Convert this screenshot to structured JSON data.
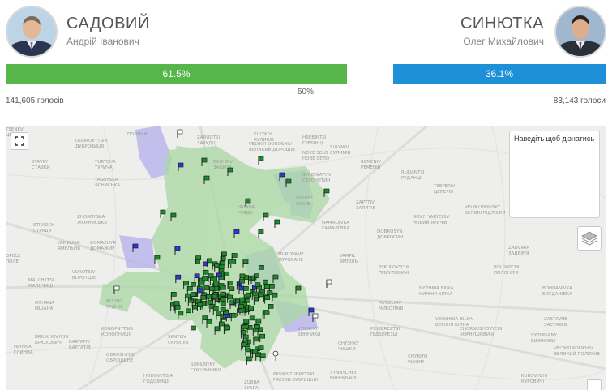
{
  "candidates": {
    "left": {
      "surname": "САДОВИЙ",
      "given": "Андрій Іванович",
      "percent": "61.5%",
      "share": 0.615,
      "votes": "141,605 голосів",
      "color": "#56b649"
    },
    "right": {
      "surname": "СИНЮТКА",
      "given": "Олег Михайлович",
      "percent": "36.1%",
      "share": 0.361,
      "votes": "83,143 голоси",
      "color": "#1e90d8"
    }
  },
  "midpoint_label": "50%",
  "map": {
    "info_text": "Наведіть щоб дізнатись",
    "places": [
      {
        "lines": [
          "ПОЛЯНИ"
        ]
      },
      {
        "lines": [
          "ZARUDTSI",
          "ЗАРУДЦІ"
        ]
      },
      {
        "lines": [
          "KULYKIV",
          "КУЛИКІВ"
        ]
      },
      {
        "lines": [
          "HREBINTSI",
          "ГРЕБІНЦІ"
        ]
      },
      {
        "lines": [
          "DUBROVYTSIA",
          "ДУБРОВИЦЯ"
        ]
      },
      {
        "lines": [
          "NOVE SELO",
          "НОВЕ СЕЛО"
        ]
      },
      {
        "lines": [
          "SULYMIV",
          "СУЛИМІВ"
        ]
      },
      {
        "lines": [
          "STAVKY",
          "СТАВКИ"
        ]
      },
      {
        "lines": [
          "TURYCHA",
          "ТУРИЧА"
        ]
      },
      {
        "lines": [
          "ZASHKIV",
          "ЗАШКІВ"
        ]
      },
      {
        "lines": [
          "VELYKYI DOROSHIV",
          "ВЕЛИКИЙ ДОРОШІВ"
        ]
      },
      {
        "lines": [
          "REMENIV",
          "РЕМЕНІВ"
        ]
      },
      {
        "lines": [
          "RUDANTSI",
          "РУДАНЦІ"
        ]
      },
      {
        "lines": [
          "STRONIATYN",
          "СТРОНЯТИН"
        ]
      },
      {
        "lines": [
          "YASNYSKA",
          "ЯСНИСЬКА"
        ]
      },
      {
        "lines": [
          "HRIADA",
          "ГРЯДА"
        ]
      },
      {
        "lines": [
          "TSEPERIV",
          "ЦЕПЕРІВ"
        ]
      },
      {
        "lines": [
          "SYKHIV",
          "СИХІВ"
        ]
      },
      {
        "lines": [
          "ZAPYTIV",
          "ЗАПИТІВ"
        ]
      },
      {
        "lines": [
          "VELYKI PIDLISKY",
          "ВЕЛИКІ ПІДЛІСКИ"
        ]
      },
      {
        "lines": [
          "ZHORNYSKA",
          "ЖОРНИСЬКА"
        ]
      },
      {
        "lines": [
          "NOVYI YARYCHIV",
          "НОВИЙ ЯРИЧІВ"
        ]
      },
      {
        "lines": [
          "STRADCH",
          "СТРАДЧ"
        ]
      },
      {
        "lines": [
          "HAMALIIVKA",
          "ГАМАЛІЇВКА"
        ]
      },
      {
        "lines": [
          "YAMELNIA",
          "ЯМЕЛЬНЯ"
        ]
      },
      {
        "lines": [
          "DOMAZHYR",
          "ДОМАЖИР"
        ]
      },
      {
        "lines": [
          "ZADVIRIA",
          "ЗАДВІР'Я"
        ]
      },
      {
        "lines": [
          "DOBROSYN",
          "ДОБРОСИН"
        ]
      },
      {
        "lines": [
          "MUROVANE",
          "МУРОВАНЕ"
        ]
      },
      {
        "lines": [
          "YAMPIL",
          "ЯМПІЛЬ"
        ]
      },
      {
        "lines": [
          "VOROTSIV",
          "ВОРОТЦІВ"
        ]
      },
      {
        "lines": [
          "OPOLE",
          "ПОЛЕ"
        ]
      },
      {
        "lines": [
          "PYKULOVYCHI",
          "ПИКУЛОВИЧІ"
        ]
      },
      {
        "lines": [
          "POLONYCHI",
          "ПОЛОНИЧІ"
        ]
      },
      {
        "lines": [
          "MALCHYTSI",
          "МАЛЬЧИЦІ"
        ]
      },
      {
        "lines": [
          "BOHDANIVKA",
          "БОГДАНІВКА"
        ]
      },
      {
        "lines": [
          "NYZHNIA BILKA",
          "НИЖНЯ БІЛКА"
        ]
      },
      {
        "lines": [
          "MSHANA",
          "МШАНА"
        ]
      },
      {
        "lines": [
          "MYKOLAIV",
          "МИКОЛАЇВ"
        ]
      },
      {
        "lines": [
          "ZASTAVNE",
          "ЗАСТАВНЕ"
        ]
      },
      {
        "lines": [
          "VERKHNIA BILKA",
          "ВЕРХНЯ БІЛКА"
        ]
      },
      {
        "lines": [
          "KONOPNYTSIA",
          "КОНОПНИЦЯ"
        ]
      },
      {
        "lines": [
          "PIDBEREZTSI",
          "ПІДБЕРЕЗЦІ"
        ]
      },
      {
        "lines": [
          "CHORNUSHOVYCHI",
          "ЧОРНУШОВИЧІ"
        ]
      },
      {
        "lines": [
          "VYZHNIANY",
          "ВИЖНЯНИ"
        ]
      },
      {
        "lines": [
          "BARTATIV",
          "БАРТАТІВ"
        ]
      },
      {
        "lines": [
          "SKNYLIV",
          "СКНИЛІВ"
        ]
      },
      {
        "lines": [
          "CHYSHKY",
          "ЧИШКИ"
        ]
      },
      {
        "lines": [
          "CHYKHYI",
          "ЧИХИЙ"
        ]
      },
      {
        "lines": [
          "VELYKYI POLIKHIV",
          "ВЕЛИКИЙ ПОЛЮХІВ"
        ]
      },
      {
        "lines": [
          "OBROSHYNE",
          "ОБРОШИНЕ"
        ]
      },
      {
        "lines": [
          "SOKILNYKY",
          "СОКІЛЬНИКИ"
        ]
      },
      {
        "lines": [
          "PASIKY-ZUBRYTSKI",
          "ПАСІКИ-ЗУБРИЦЬКІ"
        ]
      },
      {
        "lines": [
          "VYNNYCHKY",
          "ВИННИЧКИ"
        ]
      },
      {
        "lines": [
          "KUROVYCHI",
          "КУРОВИЧІ"
        ]
      },
      {
        "lines": [
          "HODOVYTSIA",
          "ГОДОВИЦЯ"
        ]
      },
      {
        "lines": [
          "ZUBRA",
          "ЗУБРА"
        ]
      },
      {
        "lines": [
          "VYNNYKY",
          "ВИННИКИ"
        ]
      },
      {
        "lines": [
          "RUDNO",
          "РУДНО"
        ]
      },
      {
        "lines": [
          "BRIUKHOVYCHI",
          "БРЮХОВИЧІ"
        ]
      },
      {
        "lines": [
          "HLYNNA",
          "ГЛИННА"
        ]
      },
      {
        "lines": [
          "TSENEV",
          "ЦЕНЕВ"
        ]
      }
    ]
  },
  "icons": {
    "fullscreen": "fullscreen-icon",
    "layers": "layers-icon",
    "marker": "flag-marker-icon",
    "pin": "map-pin-icon"
  }
}
